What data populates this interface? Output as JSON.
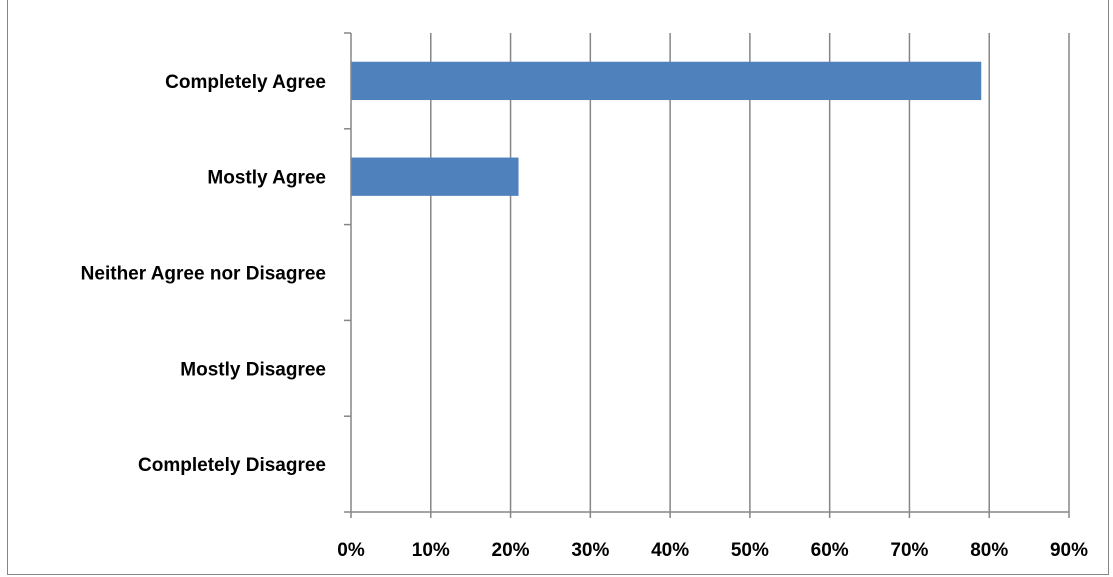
{
  "chart_data": {
    "type": "bar",
    "orientation": "horizontal",
    "title": "",
    "xlabel": "",
    "ylabel": "",
    "categories": [
      "Completely Agree",
      "Mostly Agree",
      "Neither Agree nor Disagree",
      "Mostly Disagree",
      "Completely Disagree"
    ],
    "values": [
      79,
      21,
      0,
      0,
      0
    ],
    "xlim": [
      0,
      90
    ],
    "x_ticks": [
      "0%",
      "10%",
      "20%",
      "30%",
      "40%",
      "50%",
      "60%",
      "70%",
      "80%",
      "90%"
    ],
    "grid": "vertical",
    "legend": "none",
    "colors": {
      "bar": "#4f81bd",
      "grid": "#868686",
      "axis": "#868686"
    }
  }
}
